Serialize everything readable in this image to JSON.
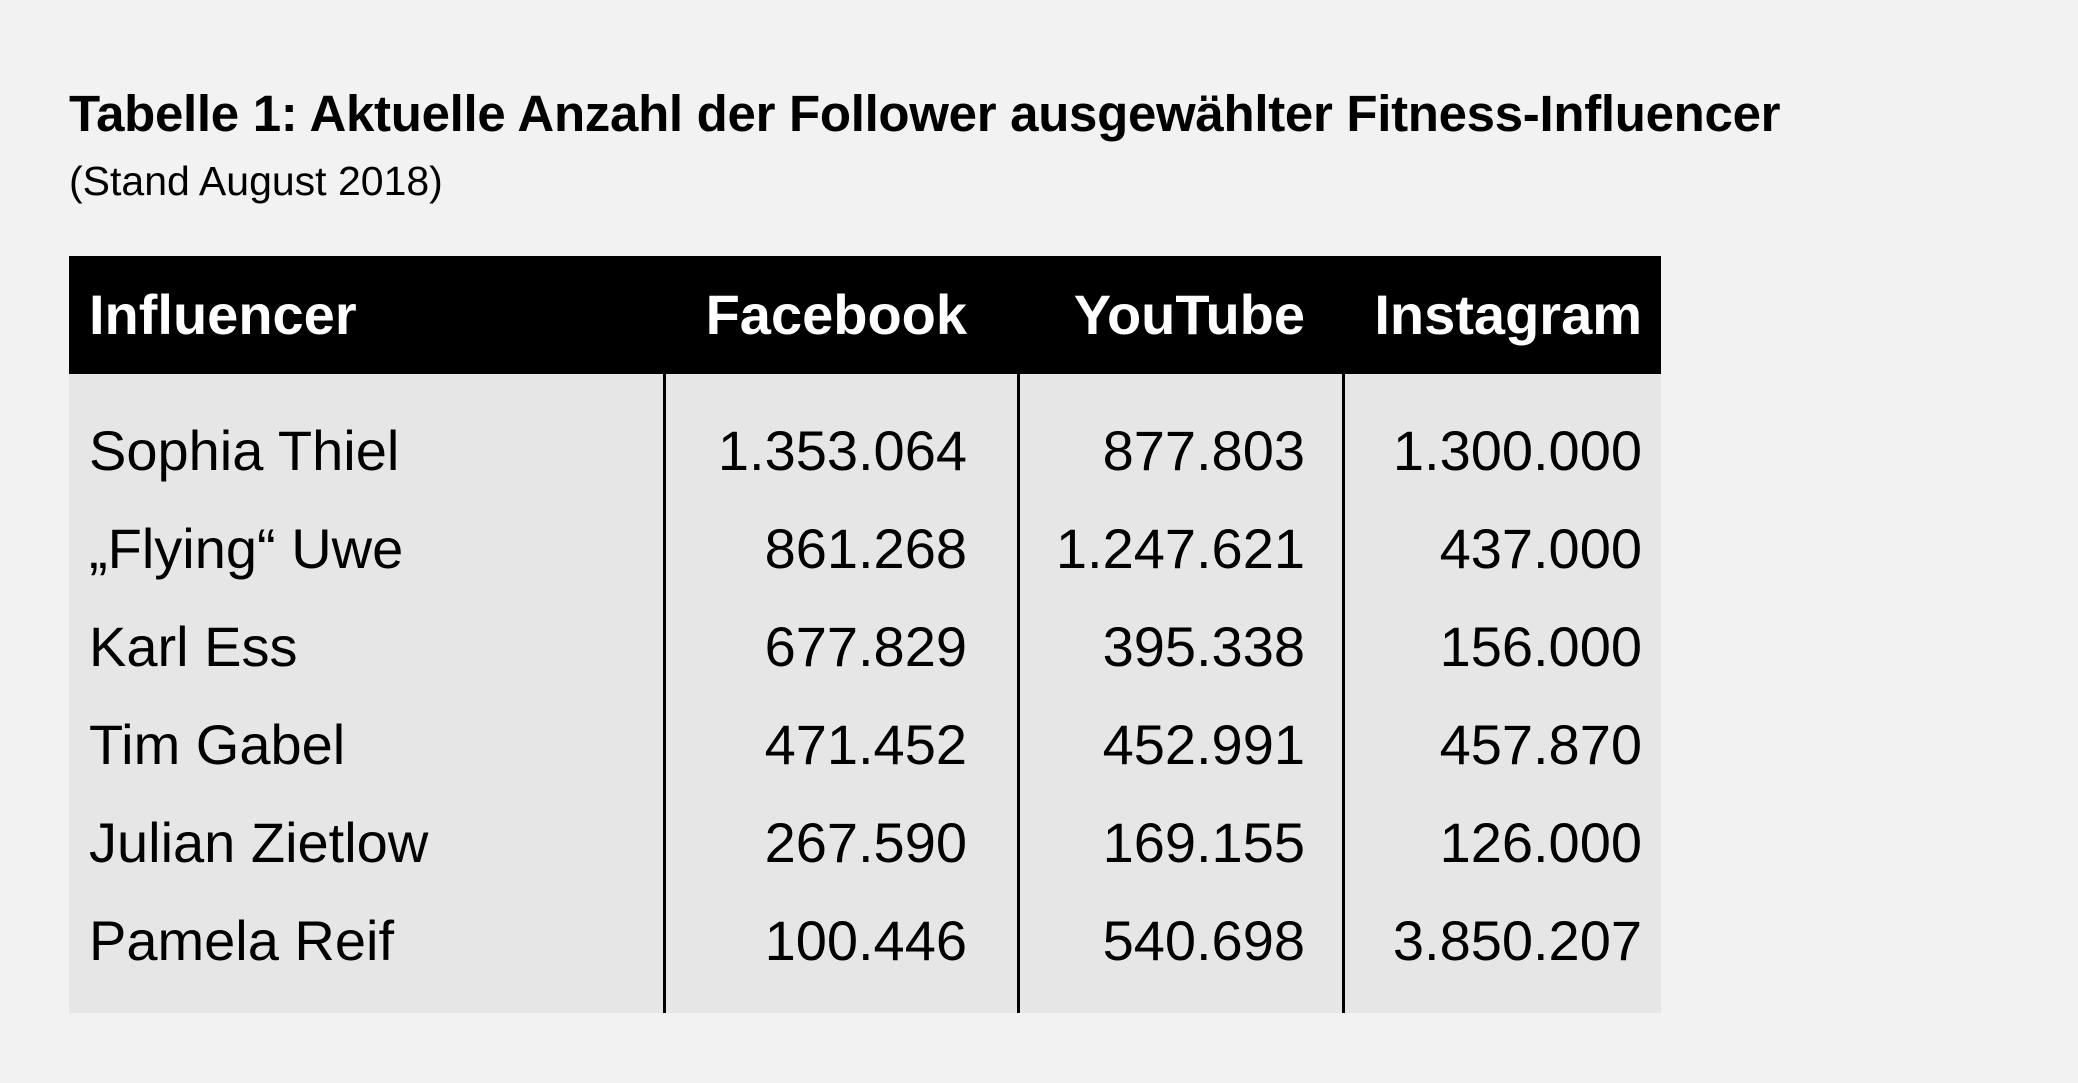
{
  "title": "Tabelle 1: Aktuelle Anzahl der Follower ausgewählter Fitness-Influencer",
  "subtitle": "(Stand August 2018)",
  "table": {
    "headers": [
      "Influencer",
      "Facebook",
      "YouTube",
      "Instagram"
    ],
    "rows": [
      [
        "Sophia Thiel",
        "1.353.064",
        "877.803",
        "1.300.000"
      ],
      [
        "„Flying“ Uwe",
        "861.268",
        "1.247.621",
        "437.000"
      ],
      [
        "Karl Ess",
        "677.829",
        "395.338",
        "156.000"
      ],
      [
        "Tim Gabel",
        "471.452",
        "452.991",
        "457.870"
      ],
      [
        "Julian Zietlow",
        "267.590",
        "169.155",
        "126.000"
      ],
      [
        "Pamela Reif",
        "100.446",
        "540.698",
        "3.850.207"
      ]
    ]
  },
  "colors": {
    "background": "#f2f2f2",
    "table_body": "#e6e6e6",
    "header_bg": "#000000",
    "header_text": "#ffffff",
    "text": "#000000"
  }
}
